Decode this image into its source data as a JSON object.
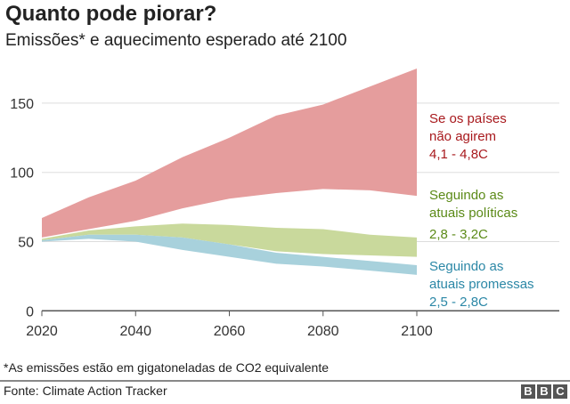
{
  "header": {
    "title": "Quanto pode piorar?",
    "subtitle": "Emissões* e aquecimento esperado até 2100"
  },
  "chart_data": {
    "type": "area",
    "x": [
      2020,
      2030,
      2040,
      2050,
      2060,
      2070,
      2080,
      2090,
      2100
    ],
    "xticks": [
      "2020",
      "2040",
      "2060",
      "2080",
      "2100"
    ],
    "yticks": [
      "0",
      "50",
      "100",
      "150"
    ],
    "ylim": [
      0,
      175
    ],
    "grid": true,
    "series": [
      {
        "key": "no_action",
        "label_lines": [
          "Se os países",
          "não agirem",
          "4,1 - 4,8C"
        ],
        "color": "#e59d9d",
        "label_color": "#a8191d",
        "upper": [
          67,
          82,
          94,
          111,
          125,
          141,
          149,
          162,
          175
        ],
        "lower": [
          53,
          59,
          65,
          74,
          81,
          85,
          88,
          87,
          83
        ]
      },
      {
        "key": "policies",
        "label_lines": [
          "Seguindo as",
          "atuais políticas",
          "2,8 - 3,2C"
        ],
        "color": "#c9d99c",
        "label_color": "#5b8a17",
        "upper": [
          52,
          58,
          61,
          63,
          62,
          60,
          59,
          55,
          53
        ],
        "lower": [
          51,
          55,
          55,
          53,
          48,
          43,
          41,
          40,
          39
        ]
      },
      {
        "key": "pledges",
        "label_lines": [
          "Seguindo as",
          "atuais promessas",
          "2,5 - 2,8C"
        ],
        "color": "#a8d1dc",
        "label_color": "#2b87a6",
        "upper": [
          51,
          55,
          55,
          53,
          48,
          42,
          39,
          36,
          33
        ],
        "lower": [
          50,
          52,
          50,
          44,
          39,
          34,
          32,
          29,
          26
        ]
      }
    ]
  },
  "footer": {
    "note": "*As emissões estão em gigatoneladas de CO2 equivalente",
    "source": "Fonte: Climate Action Tracker",
    "logo": [
      "B",
      "B",
      "C"
    ]
  }
}
